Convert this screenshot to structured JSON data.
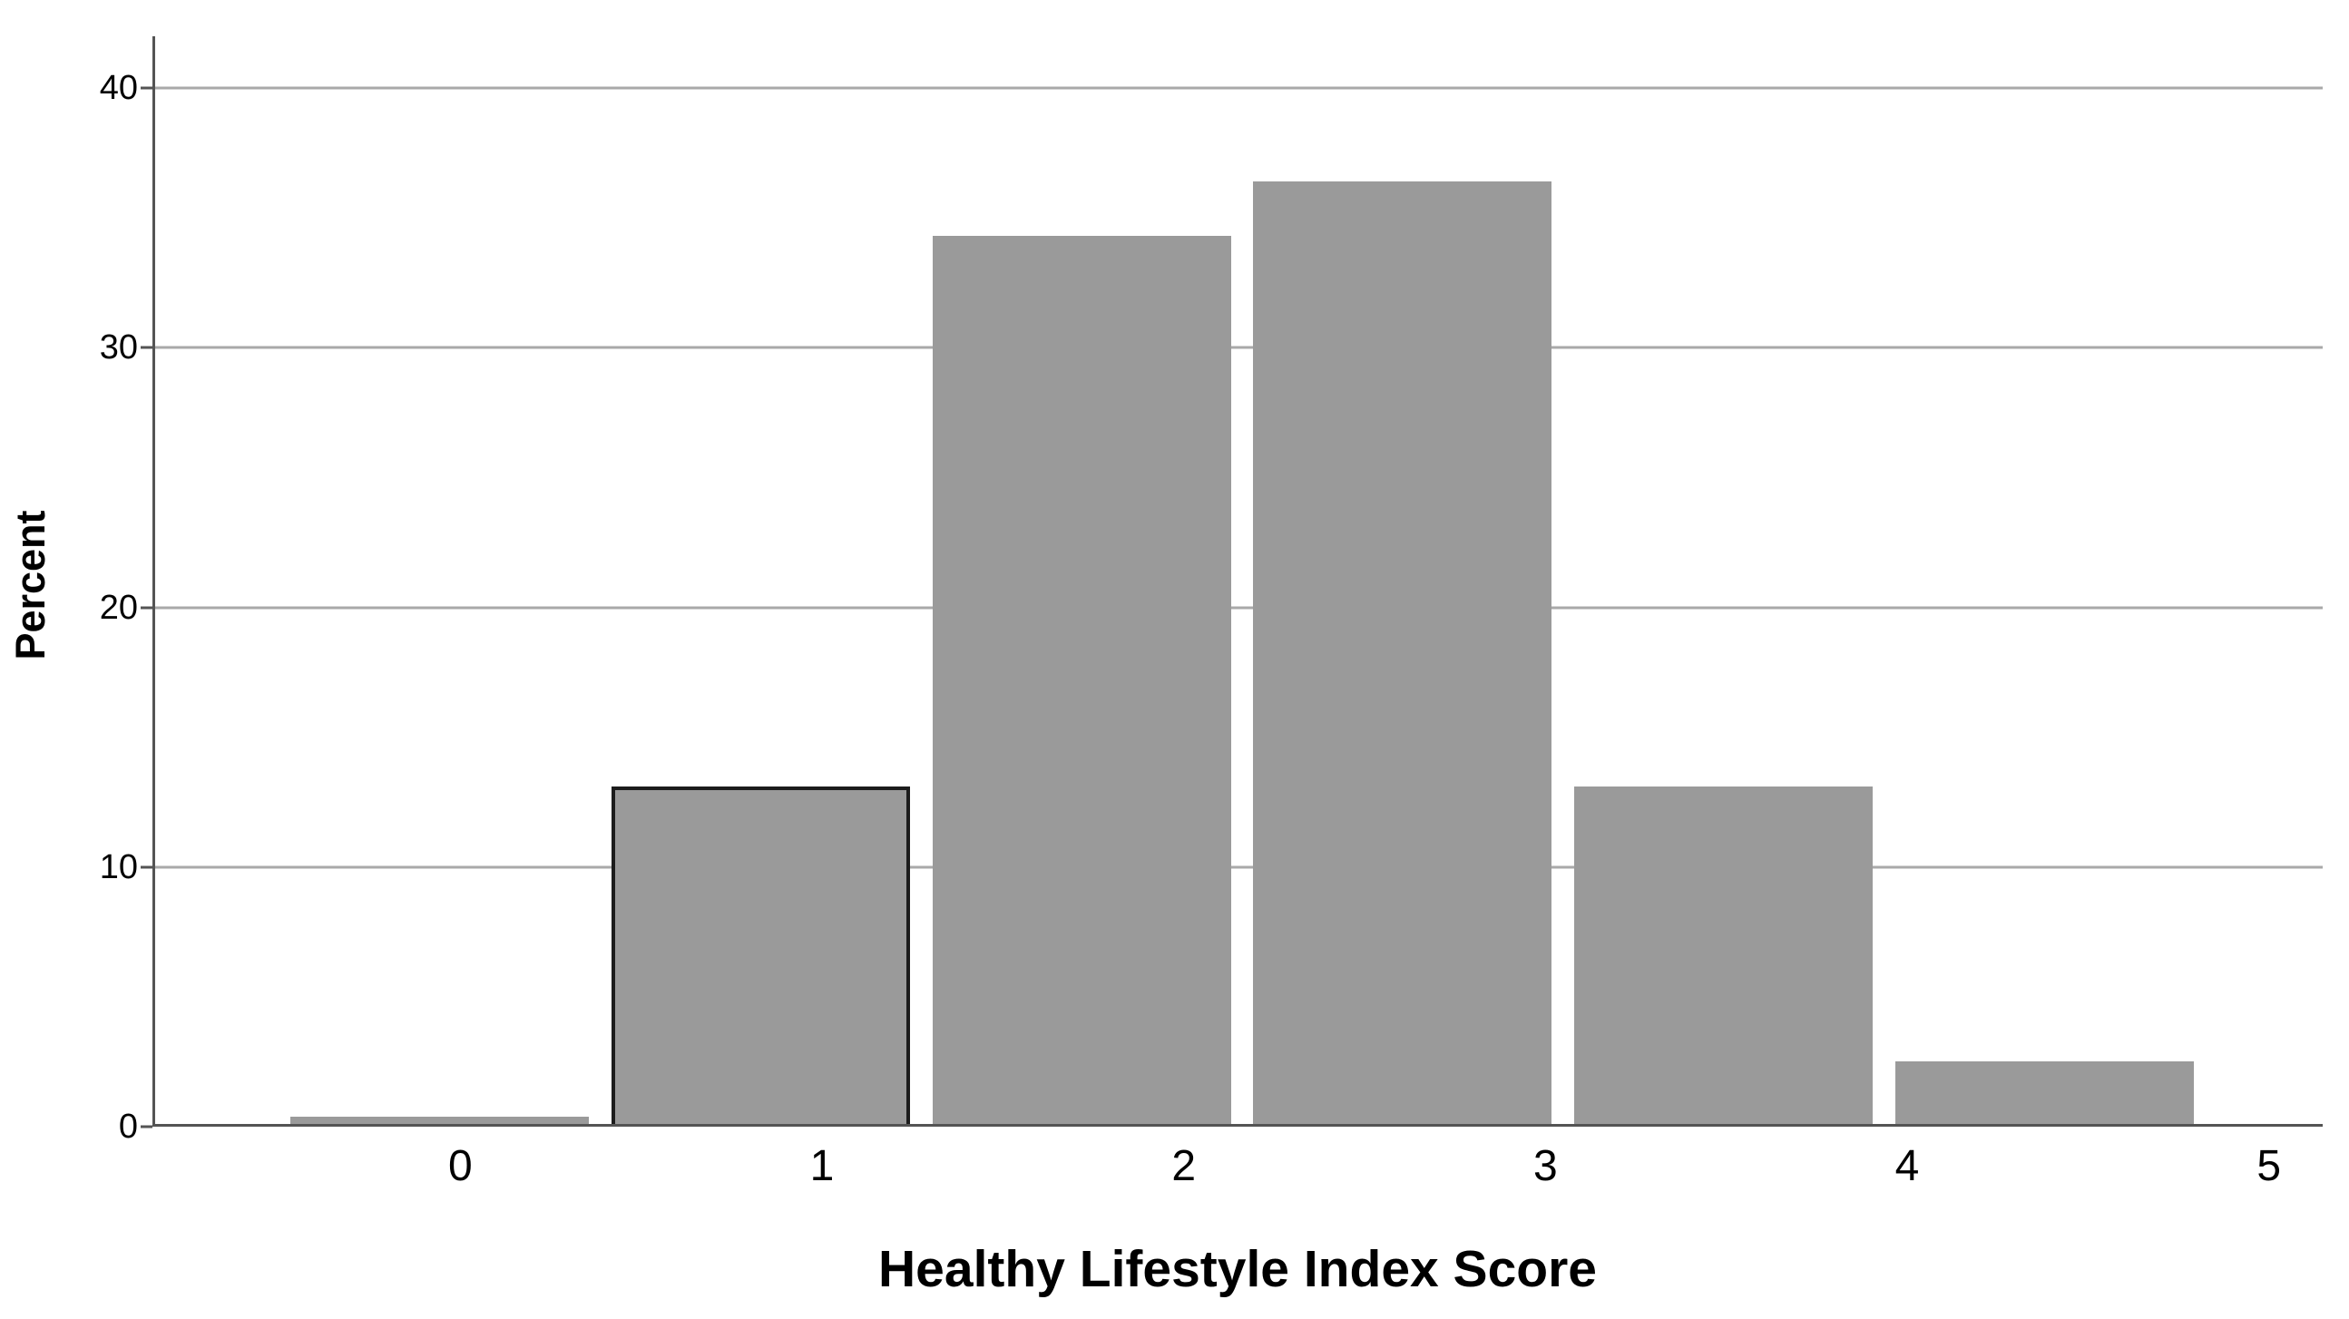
{
  "chart_data": {
    "type": "bar",
    "title": "",
    "categories": [
      "0",
      "1",
      "2",
      "3",
      "4",
      "5"
    ],
    "values": [
      0.4,
      13.1,
      34.3,
      36.4,
      13.1,
      2.5
    ],
    "xlabel": "Healthy Lifestyle Index Score",
    "ylabel": "Percent",
    "ylim": [
      0,
      42
    ],
    "yticks": [
      0,
      10,
      20,
      30,
      40
    ],
    "grid": "horizontal-only",
    "legend": "none",
    "highlighted_bar_index": 1,
    "colors": {
      "bar_fill": "#9a9a9a",
      "highlighted_bar_border": "#1c1c1c",
      "gridline": "#a9a9a9",
      "axis_line": "#545454",
      "text": "#000000",
      "background": "#ffffff"
    }
  }
}
